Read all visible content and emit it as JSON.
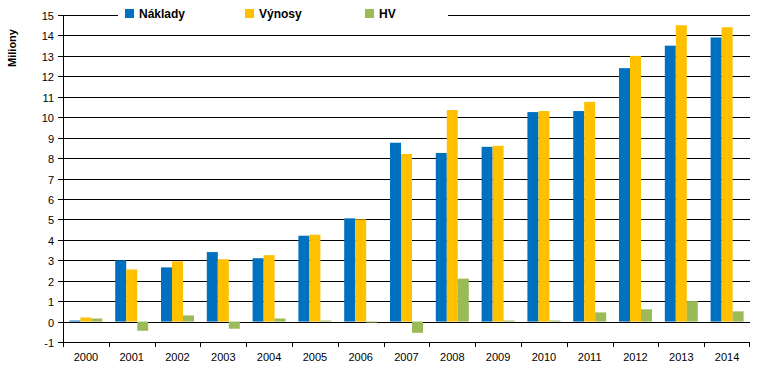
{
  "chart_data": {
    "type": "bar",
    "y_label": "Miliony",
    "categories": [
      "2000",
      "2001",
      "2002",
      "2003",
      "2004",
      "2005",
      "2006",
      "2007",
      "2008",
      "2009",
      "2010",
      "2011",
      "2012",
      "2013",
      "2014"
    ],
    "series": [
      {
        "name": "Náklady",
        "color": "#0070c0",
        "values": [
          0.05,
          3.0,
          2.65,
          3.4,
          3.1,
          4.2,
          5.05,
          8.75,
          8.25,
          8.55,
          10.25,
          10.3,
          12.4,
          13.5,
          13.9
        ]
      },
      {
        "name": "Výnosy",
        "color": "#ffc000",
        "values": [
          0.2,
          2.55,
          2.95,
          3.05,
          3.25,
          4.25,
          5.0,
          8.2,
          10.35,
          8.6,
          10.3,
          10.75,
          13.0,
          14.5,
          14.4
        ]
      },
      {
        "name": "HV",
        "color": "#9bbb59",
        "values": [
          0.15,
          -0.45,
          0.3,
          -0.35,
          0.15,
          0.05,
          -0.05,
          -0.55,
          2.1,
          0.05,
          0.05,
          0.45,
          0.6,
          1.0,
          0.5
        ]
      }
    ],
    "ylim": [
      -1,
      15
    ],
    "yticks": [
      -1,
      0,
      1,
      2,
      3,
      4,
      5,
      6,
      7,
      8,
      9,
      10,
      11,
      12,
      13,
      14,
      15
    ],
    "grid": true,
    "legend": "top"
  }
}
